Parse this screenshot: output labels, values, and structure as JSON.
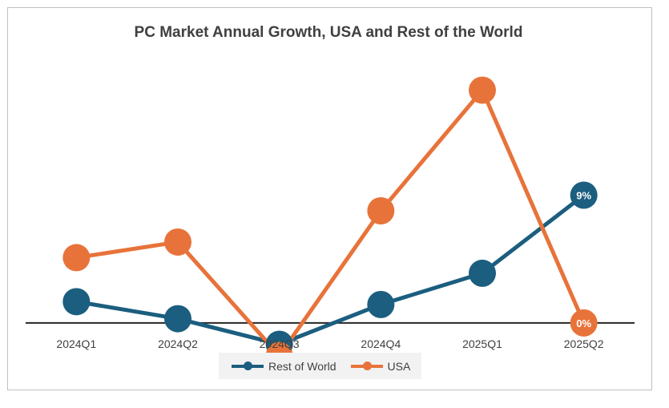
{
  "chart_data": {
    "type": "line",
    "title": "PC Market Annual Growth, USA and Rest of the World",
    "categories": [
      "2024Q1",
      "2024Q2",
      "2024Q3",
      "2024Q4",
      "2025Q1",
      "2025Q2"
    ],
    "series": [
      {
        "name": "Rest of World",
        "color": "#1b5e7f",
        "values": [
          1.5,
          0.3,
          -1.5,
          1.3,
          3.5,
          9
        ],
        "data_labels": [
          "",
          "",
          "",
          "",
          "",
          "9%"
        ]
      },
      {
        "name": "USA",
        "color": "#e8733a",
        "values": [
          4.6,
          5.7,
          -2.3,
          7.9,
          16.4,
          0
        ],
        "data_labels": [
          "",
          "",
          "",
          "",
          "",
          "0%"
        ]
      }
    ],
    "ylim": [
      -3,
      17.5
    ],
    "xlabel": "",
    "ylabel": "",
    "grid": false,
    "legend": "bottom"
  }
}
